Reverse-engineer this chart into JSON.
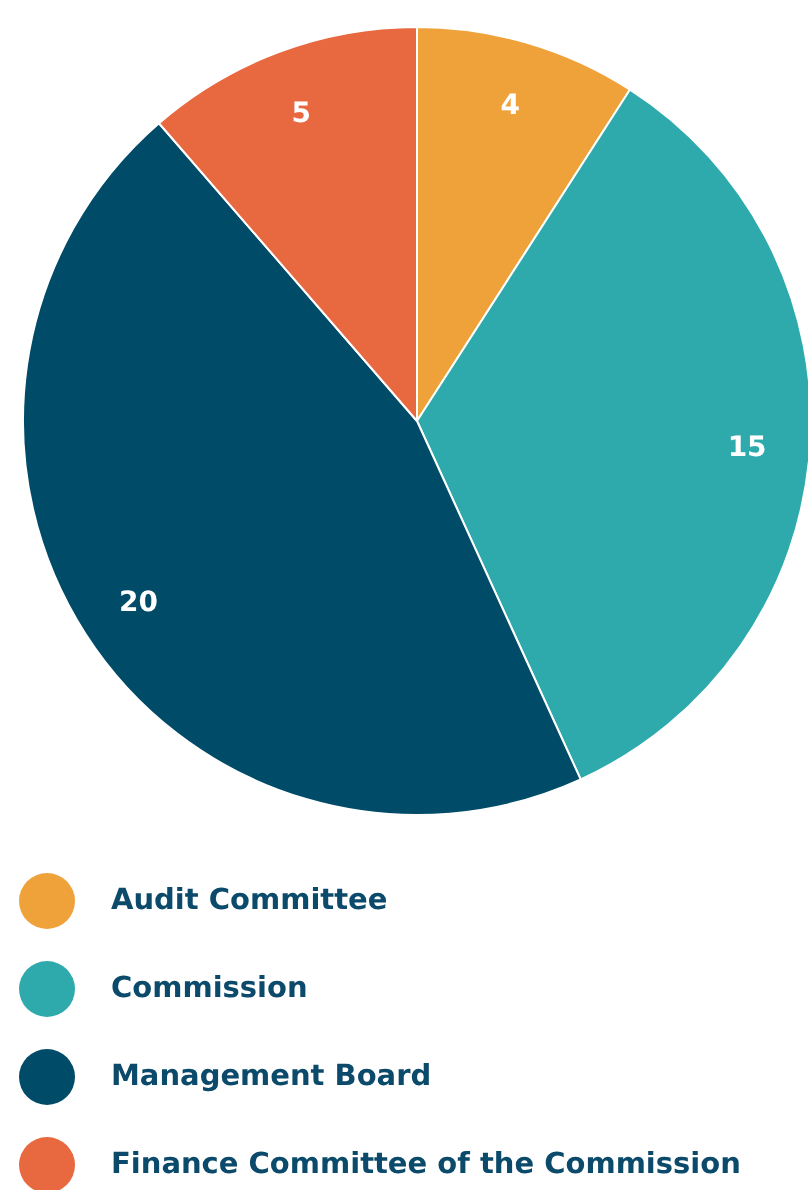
{
  "chart_data": {
    "type": "pie",
    "categories": [
      "Audit Committee",
      "Commission",
      "Management Board",
      "Finance Committee of the Commission"
    ],
    "values": [
      4,
      15,
      20,
      5
    ],
    "colors": [
      "#f0a23a",
      "#2eaaad",
      "#004b68",
      "#e8683f"
    ],
    "data_labels": true,
    "legend": "bottom"
  }
}
